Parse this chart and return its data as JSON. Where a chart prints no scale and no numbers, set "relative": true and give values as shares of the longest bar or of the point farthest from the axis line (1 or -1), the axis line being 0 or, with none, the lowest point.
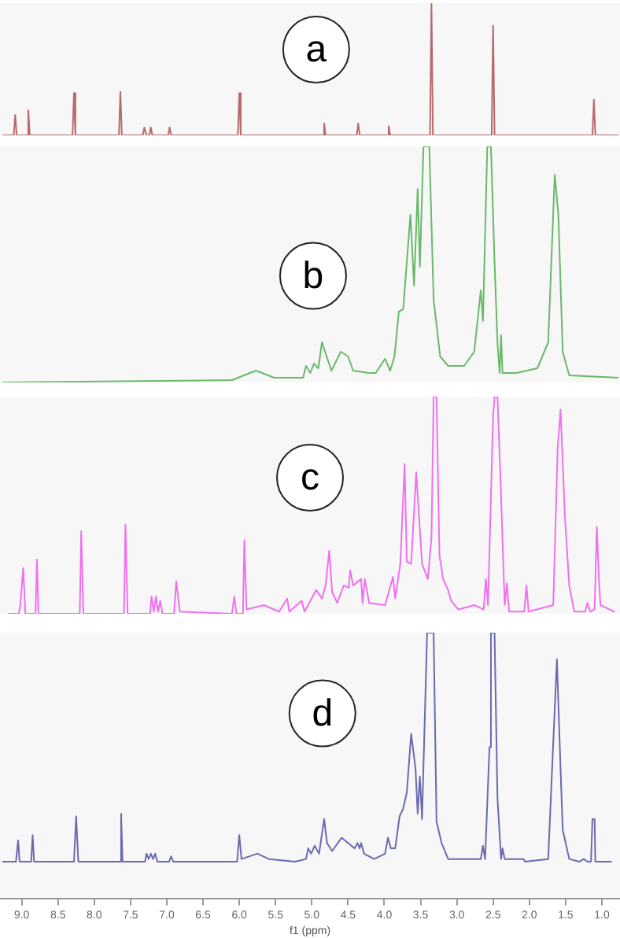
{
  "chart_data": [
    {
      "type": "line",
      "relative": true,
      "xlim": [
        9.3,
        0.75
      ],
      "tick_labels": false,
      "grid": false,
      "legend": false,
      "marker": "none",
      "annotations": [
        "a"
      ],
      "series": [
        {
          "color": "#b86a6a",
          "x": [
            9.26,
            9.11,
            9.09,
            9.07,
            8.93,
            8.91,
            8.89,
            8.3,
            8.28,
            8.26,
            7.66,
            7.64,
            7.62,
            7.33,
            7.31,
            7.28,
            7.24,
            7.22,
            7.2,
            6.98,
            6.96,
            6.94,
            6.02,
            6.0,
            5.98,
            4.85,
            4.83,
            4.81,
            4.38,
            4.36,
            4.34,
            3.96,
            3.94,
            3.92,
            3.37,
            3.35,
            3.33,
            2.52,
            2.5,
            2.48,
            1.13,
            1.11,
            1.09,
            0.78
          ],
          "values": [
            0,
            0,
            0.155,
            0,
            0,
            0.19,
            0,
            0,
            0.32,
            0,
            0,
            0.33,
            0,
            0,
            0.06,
            0,
            0,
            0.06,
            0,
            0,
            0.06,
            0,
            0,
            0.32,
            0,
            0,
            0.09,
            0,
            0,
            0.09,
            0,
            0,
            0.07,
            0,
            0,
            1,
            0,
            0,
            0.83,
            0,
            0,
            0.27,
            0,
            0
          ]
        }
      ]
    },
    {
      "type": "line",
      "relative": true,
      "xlim": [
        9.3,
        0.75
      ],
      "tick_labels": false,
      "grid": false,
      "legend": false,
      "marker": "none",
      "annotations": [
        "b"
      ],
      "series": [
        {
          "color": "#6ab86a",
          "x": [
            9.26,
            6.1,
            5.77,
            5.52,
            5.12,
            5.08,
            5.02,
            4.97,
            4.91,
            4.86,
            4.73,
            4.6,
            4.5,
            4.43,
            4.21,
            4.12,
            3.99,
            3.92,
            3.86,
            3.8,
            3.74,
            3.64,
            3.59,
            3.54,
            3.51,
            3.46,
            3.38,
            3.32,
            3.23,
            3.12,
            2.9,
            2.76,
            2.67,
            2.64,
            2.58,
            2.53,
            2.48,
            2.44,
            2.41,
            2.39,
            2.37,
            2.18,
            1.89,
            1.74,
            1.65,
            1.6,
            1.54,
            1.45,
            0.78
          ],
          "values": [
            0,
            0.01,
            0.05,
            0.02,
            0.02,
            0.07,
            0.04,
            0.08,
            0.06,
            0.17,
            0.05,
            0.13,
            0.11,
            0.05,
            0.04,
            0.04,
            0.1,
            0.05,
            0.11,
            0.3,
            0.31,
            0.71,
            0.41,
            0.82,
            0.49,
            1,
            1,
            0.35,
            0.11,
            0.07,
            0.07,
            0.13,
            0.39,
            0.26,
            1,
            1,
            0.51,
            0.17,
            0.04,
            0.2,
            0.04,
            0.04,
            0.06,
            0.17,
            0.88,
            0.71,
            0.13,
            0.03,
            0.02
          ]
        }
      ]
    },
    {
      "type": "line",
      "relative": true,
      "xlim": [
        9.3,
        0.75
      ],
      "tick_labels": false,
      "grid": false,
      "legend": false,
      "marker": "none",
      "annotations": [
        "c"
      ],
      "series": [
        {
          "color": "#f070f0",
          "x": [
            9.18,
            9.04,
            9.02,
            8.98,
            8.95,
            8.81,
            8.79,
            8.77,
            8.2,
            8.18,
            8.15,
            7.59,
            7.57,
            7.54,
            7.23,
            7.21,
            7.18,
            7.15,
            7.12,
            7.09,
            7.06,
            6.9,
            6.87,
            6.82,
            6.1,
            6.07,
            6.04,
            5.95,
            5.93,
            5.9,
            5.66,
            5.52,
            5.45,
            5.34,
            5.31,
            5.14,
            5.1,
            4.94,
            4.86,
            4.81,
            4.76,
            4.72,
            4.65,
            4.56,
            4.49,
            4.47,
            4.43,
            4.32,
            4.3,
            4.27,
            4.21,
            3.99,
            3.88,
            3.85,
            3.78,
            3.72,
            3.69,
            3.63,
            3.56,
            3.48,
            3.4,
            3.35,
            3.32,
            3.28,
            3.24,
            3.19,
            3.12,
            3.08,
            2.98,
            2.76,
            2.63,
            2.6,
            2.57,
            2.5,
            2.48,
            2.44,
            2.4,
            2.34,
            2.31,
            2.28,
            2.07,
            2.04,
            2.01,
            1.67,
            1.61,
            1.57,
            1.51,
            1.45,
            1.38,
            1.23,
            1.2,
            1.16,
            1.1,
            1.07,
            1.04,
            1.02,
            0.83
          ],
          "values": [
            0,
            0,
            0.04,
            0.21,
            0,
            0,
            0.25,
            0,
            0,
            0.38,
            0,
            0,
            0.41,
            0,
            0,
            0.08,
            0.01,
            0.08,
            0.01,
            0.06,
            0,
            0,
            0.15,
            0.01,
            0,
            0.08,
            0,
            0,
            0.34,
            0.02,
            0.04,
            0.02,
            0.01,
            0.07,
            0.01,
            0.06,
            0.01,
            0.11,
            0.07,
            0.13,
            0.29,
            0.1,
            0.05,
            0.13,
            0.12,
            0.2,
            0.13,
            0.16,
            0.05,
            0.16,
            0.05,
            0.04,
            0.17,
            0.07,
            0.23,
            0.69,
            0.24,
            0.23,
            0.65,
            0.23,
            0.16,
            0.35,
            1,
            1,
            0.27,
            0.16,
            0.11,
            0.06,
            0.02,
            0.04,
            0.02,
            0.16,
            0.04,
            0.91,
            1,
            1,
            0.64,
            0.04,
            0.14,
            0.01,
            0.01,
            0.13,
            0.01,
            0.04,
            0.76,
            0.94,
            0.45,
            0.13,
            0.01,
            0.01,
            0.05,
            0.01,
            0.02,
            0.4,
            0.16,
            0.04,
            0.01
          ]
        }
      ]
    },
    {
      "type": "line",
      "relative": true,
      "xlim": [
        9.3,
        0.75
      ],
      "tick_labels": "x",
      "grid": false,
      "legend": false,
      "marker": "none",
      "annotations": [
        "d"
      ],
      "xlabel": "f1 (ppm)",
      "xticks": [
        {
          "value": 9,
          "label": "9.0"
        },
        8.5,
        {
          "value": 8,
          "label": "8.0"
        },
        7.5,
        {
          "value": 7,
          "label": "7.0"
        },
        6.5,
        {
          "value": 6,
          "label": "6.0"
        },
        5.5,
        {
          "value": 5,
          "label": "5.0"
        },
        4.5,
        {
          "value": 4,
          "label": "4.0"
        },
        3.5,
        {
          "value": 3,
          "label": "3.0"
        },
        2.5,
        {
          "value": 2,
          "label": "2.0"
        },
        1.5,
        {
          "value": 1,
          "label": "1.0"
        }
      ],
      "series": [
        {
          "color": "#6a6ab0",
          "x": [
            9.26,
            9.08,
            9.05,
            9.03,
            8.87,
            8.85,
            8.83,
            8.28,
            8.25,
            8.22,
            7.65,
            7.63,
            7.61,
            7.3,
            7.28,
            7.25,
            7.22,
            7.19,
            7.16,
            7.13,
            6.97,
            6.94,
            6.91,
            6.03,
            6.0,
            5.97,
            5.75,
            5.59,
            5.23,
            5.08,
            5.05,
            5.01,
            4.96,
            4.9,
            4.83,
            4.79,
            4.72,
            4.59,
            4.5,
            4.41,
            4.37,
            4.34,
            4.32,
            4.28,
            4.14,
            3.99,
            3.95,
            3.91,
            3.85,
            3.79,
            3.74,
            3.69,
            3.63,
            3.57,
            3.54,
            3.51,
            3.48,
            3.41,
            3.32,
            3.28,
            3.21,
            3.12,
            2.76,
            2.67,
            2.64,
            2.61,
            2.55,
            2.53,
            2.48,
            2.44,
            2.39,
            2.37,
            2.34,
            2.1,
            2.08,
            2.06,
            1.74,
            1.67,
            1.62,
            1.57,
            1.54,
            1.45,
            1.31,
            1.25,
            1.2,
            1.15,
            1.13,
            1.1,
            1.09,
            0.87
          ],
          "values": [
            0.14,
            0.14,
            0.22,
            0.14,
            0.14,
            0.24,
            0.14,
            0.14,
            0.31,
            0.14,
            0.14,
            0.32,
            0.14,
            0.14,
            0.17,
            0.15,
            0.17,
            0.15,
            0.17,
            0.14,
            0.14,
            0.16,
            0.14,
            0.14,
            0.24,
            0.15,
            0.17,
            0.15,
            0.14,
            0.15,
            0.19,
            0.17,
            0.2,
            0.17,
            0.3,
            0.21,
            0.18,
            0.23,
            0.21,
            0.19,
            0.21,
            0.19,
            0.21,
            0.17,
            0.15,
            0.17,
            0.23,
            0.19,
            0.19,
            0.31,
            0.34,
            0.4,
            0.62,
            0.49,
            0.32,
            0.46,
            0.3,
            1,
            1,
            0.29,
            0.21,
            0.15,
            0.15,
            0.15,
            0.2,
            0.15,
            0.57,
            1,
            1,
            0.38,
            0.15,
            0.19,
            0.15,
            0.15,
            0.15,
            0.14,
            0.15,
            0.59,
            0.9,
            0.49,
            0.26,
            0.15,
            0.14,
            0.15,
            0.14,
            0.14,
            0.3,
            0.3,
            0.14,
            0.14
          ]
        }
      ]
    }
  ]
}
